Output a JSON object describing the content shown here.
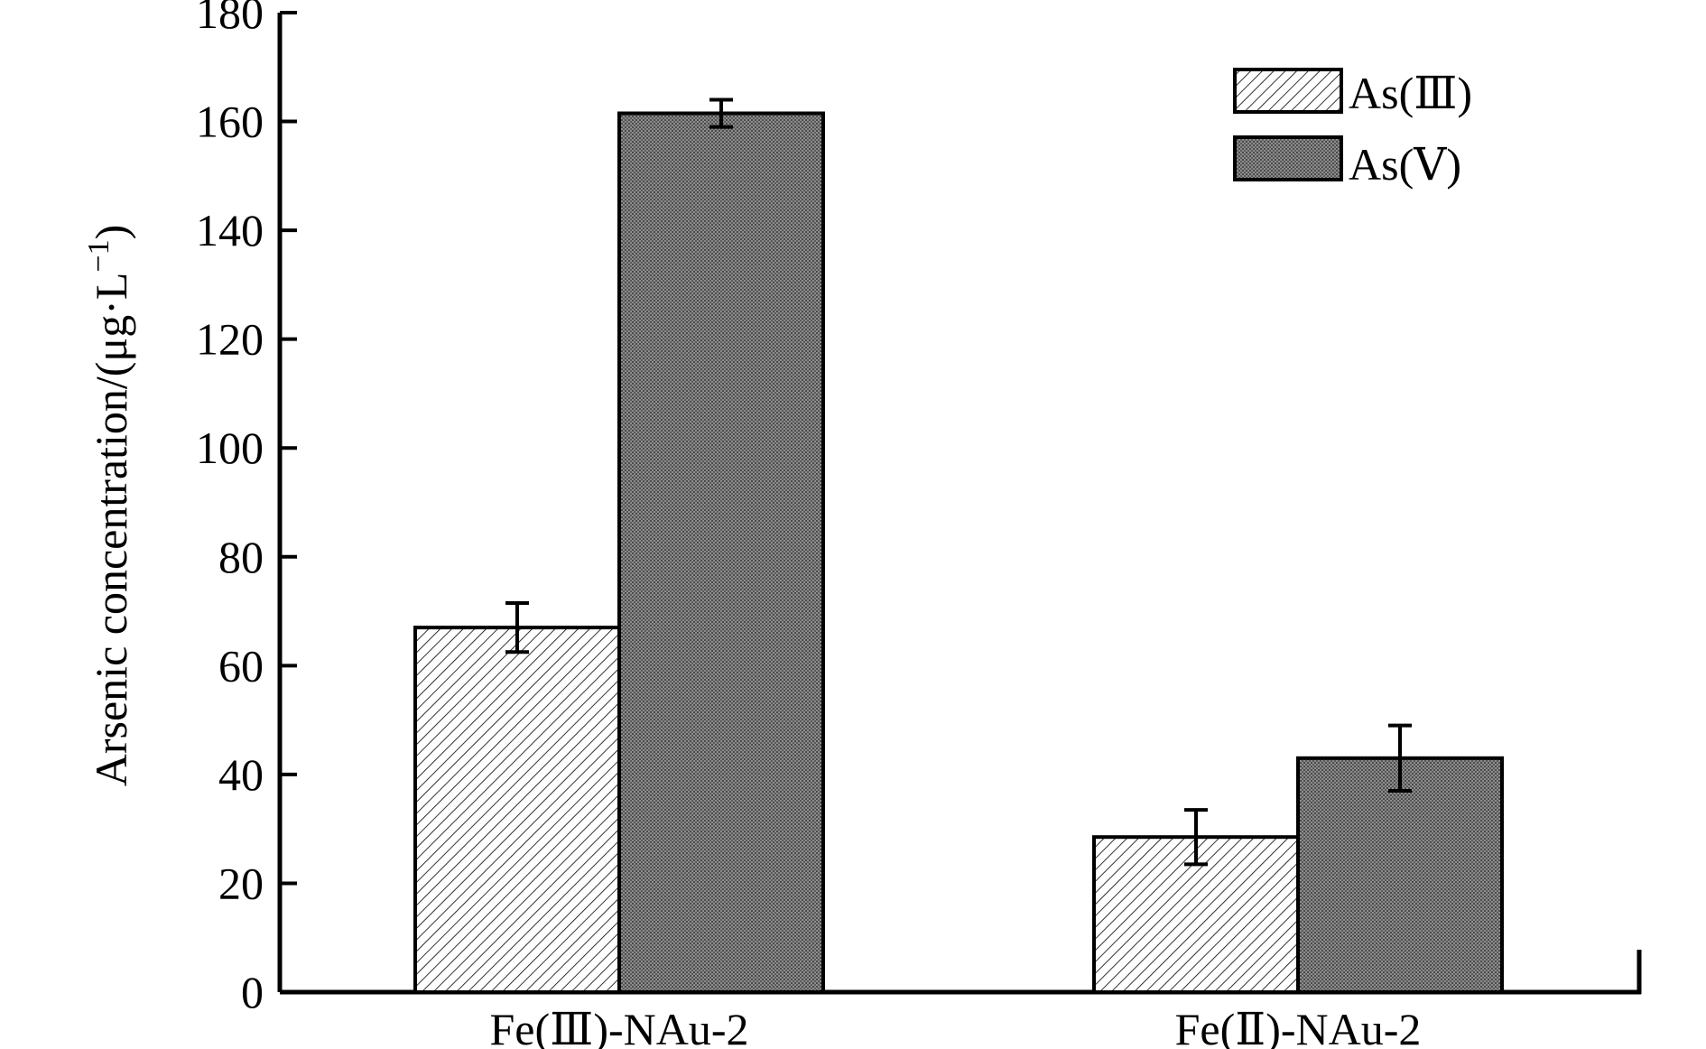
{
  "chart_data": {
    "type": "bar",
    "title": "",
    "xlabel": "",
    "ylabel": "Arsenic concentration/(μg·L",
    "ylabel_superscript": "−1",
    "ylabel_close": ")",
    "categories": [
      "Fe(Ⅲ)-NAu-2",
      "Fe(Ⅱ)-NAu-2"
    ],
    "series": [
      {
        "name": "As(Ⅲ)",
        "values": [
          67,
          28.5
        ],
        "error": [
          4.5,
          5
        ],
        "pattern": "diagonal-hatch",
        "color": "#ffffff"
      },
      {
        "name": "As(Ⅴ)",
        "values": [
          161.5,
          43
        ],
        "error": [
          2.5,
          6
        ],
        "pattern": "dense-crosshatch",
        "color": "#8a8a8a"
      }
    ],
    "ylim": [
      0,
      180
    ],
    "yticks": [
      0,
      20,
      40,
      60,
      80,
      100,
      120,
      140,
      160,
      180
    ],
    "legend_position": "top-right",
    "grid": false
  }
}
